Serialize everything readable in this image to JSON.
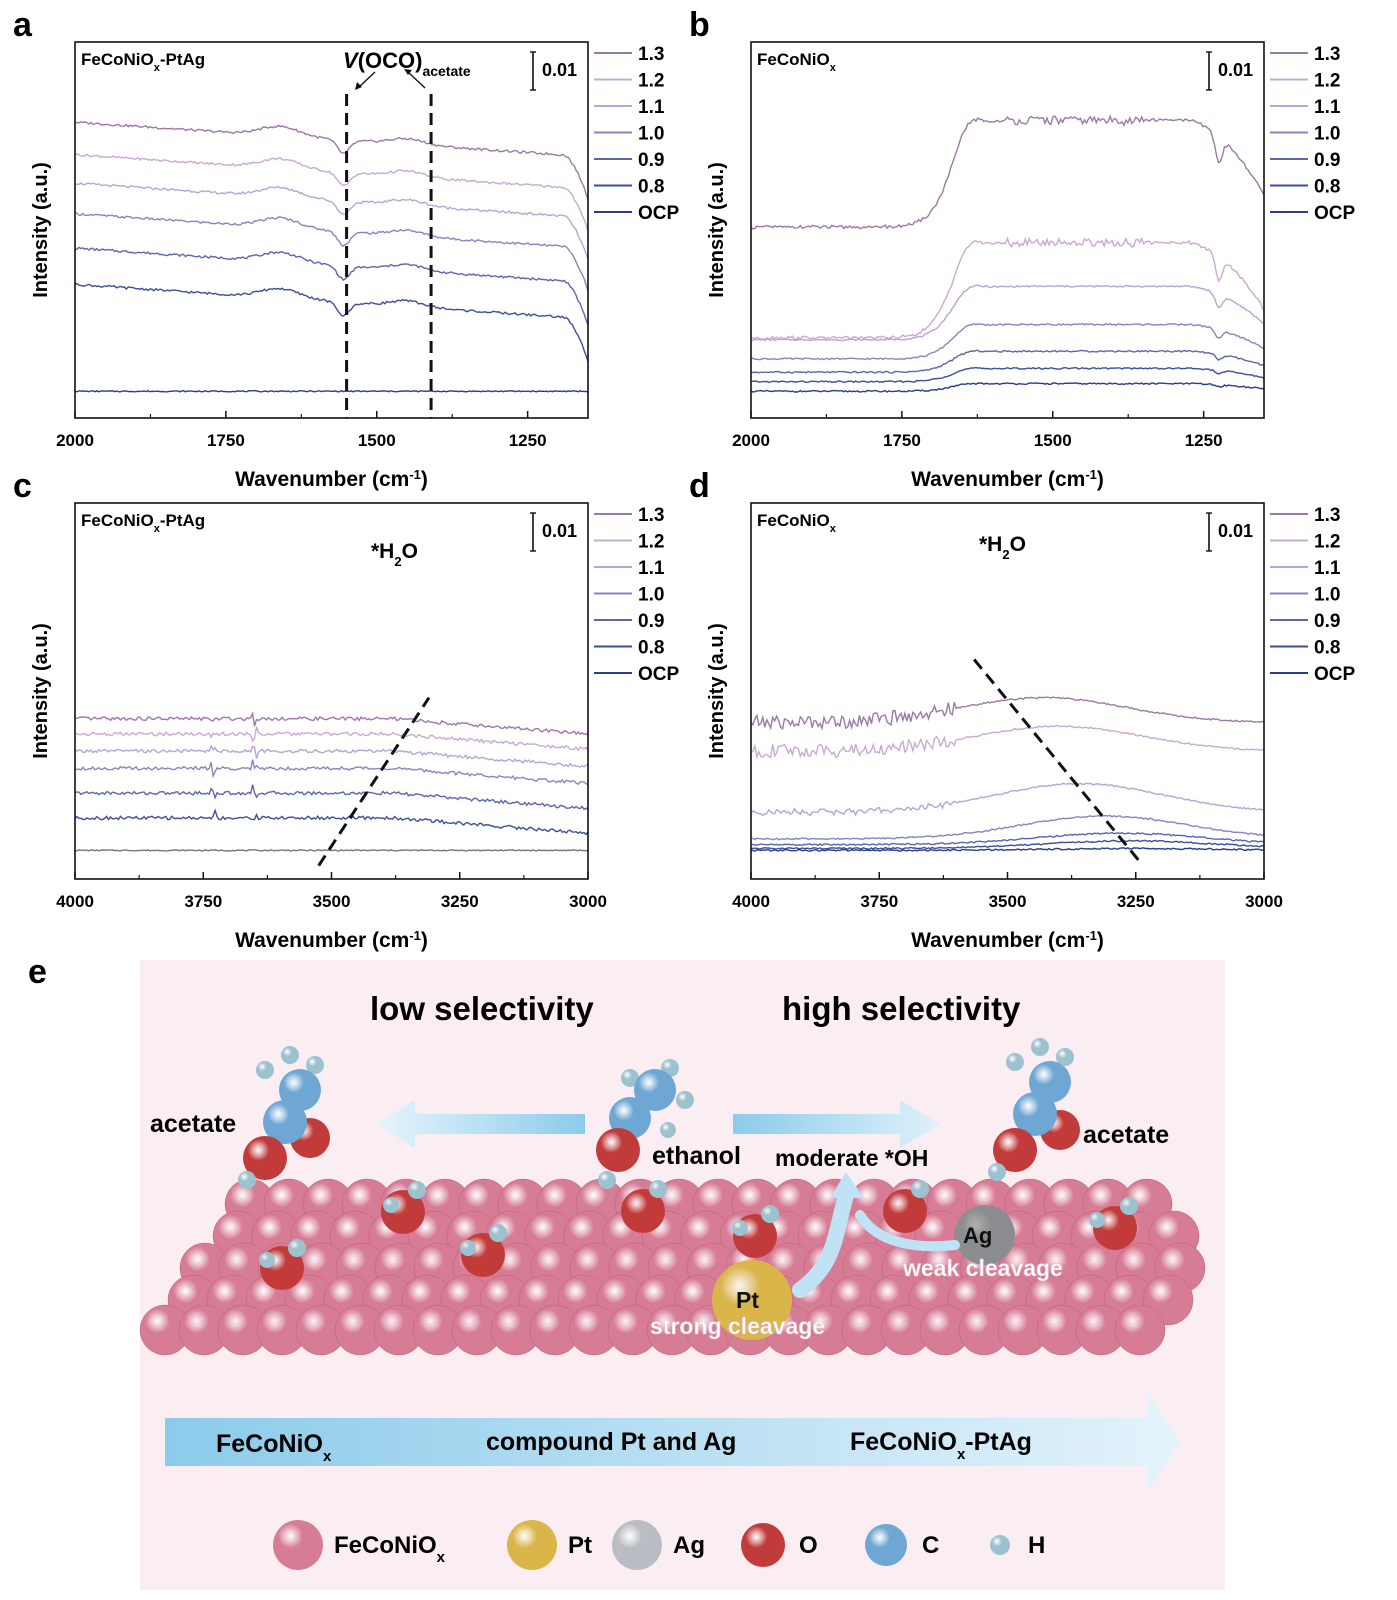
{
  "chart_data": [
    {
      "panel_letter": "a",
      "type": "line",
      "sample": "FeCoNiO",
      "sample_sub": "x",
      "sample_tail": "-PtAg",
      "xlabel": "Wavenumber (cm",
      "xlabel_sup": "-1",
      "xlabel_tail": ")",
      "ylabel": "Intensity (a.u.)",
      "xlim": [
        2000,
        1150
      ],
      "xticks": [
        2000,
        1750,
        1500,
        1250
      ],
      "scale_bar": "0.01",
      "legend": [
        "1.3",
        "1.2",
        "1.1",
        "1.0",
        "0.9",
        "0.8",
        "OCP"
      ],
      "annotation": {
        "italic": "V",
        "main": "(OCO)",
        "sub": "acetate"
      },
      "marker_lines_x": [
        1550,
        1410
      ],
      "series": [
        {
          "name": "1.3",
          "offset": 0.0125,
          "shape": "acetate"
        },
        {
          "name": "1.2",
          "offset": 0.0108,
          "shape": "acetate"
        },
        {
          "name": "1.1",
          "offset": 0.0093,
          "shape": "acetate"
        },
        {
          "name": "1.0",
          "offset": 0.0077,
          "shape": "acetate"
        },
        {
          "name": "0.9",
          "offset": 0.0059,
          "shape": "acetate"
        },
        {
          "name": "0.8",
          "offset": 0.004,
          "shape": "acetate"
        },
        {
          "name": "OCP",
          "offset": 0.0002,
          "shape": "flat"
        }
      ]
    },
    {
      "panel_letter": "b",
      "type": "line",
      "sample": "FeCoNiO",
      "sample_sub": "x",
      "sample_tail": "",
      "xlabel": "Wavenumber (cm",
      "xlabel_sup": "-1",
      "xlabel_tail": ")",
      "ylabel": "Intensity (a.u.)",
      "xlim": [
        2000,
        1150
      ],
      "xticks": [
        2000,
        1750,
        1500,
        1250
      ],
      "scale_bar": "0.01",
      "legend": [
        "1.3",
        "1.2",
        "1.1",
        "1.0",
        "0.9",
        "0.8",
        "OCP"
      ],
      "series": [
        {
          "name": "1.3",
          "offset": 0.0088,
          "amp": 0.0056,
          "shape": "broad"
        },
        {
          "name": "1.2",
          "offset": 0.003,
          "amp": 0.005,
          "shape": "broad"
        },
        {
          "name": "1.1",
          "offset": 0.0029,
          "amp": 0.0028,
          "shape": "broad"
        },
        {
          "name": "1.0",
          "offset": 0.0019,
          "amp": 0.0018,
          "shape": "broad"
        },
        {
          "name": "0.9",
          "offset": 0.0012,
          "amp": 0.0011,
          "shape": "broad"
        },
        {
          "name": "0.8",
          "offset": 0.0007,
          "amp": 0.0007,
          "shape": "broad"
        },
        {
          "name": "OCP",
          "offset": 0.0002,
          "amp": 0.0004,
          "shape": "broad"
        }
      ]
    },
    {
      "panel_letter": "c",
      "type": "line",
      "sample": "FeCoNiO",
      "sample_sub": "x",
      "sample_tail": "-PtAg",
      "xlabel": "Wavenumber (cm",
      "xlabel_sup": "-1",
      "xlabel_tail": ")",
      "ylabel": "Intensity (a.u.)",
      "xlim": [
        4000,
        3000
      ],
      "xticks": [
        4000,
        3750,
        3500,
        3250,
        3000
      ],
      "scale_bar": "0.01",
      "legend": [
        "1.3",
        "1.2",
        "1.1",
        "1.0",
        "0.9",
        "0.8",
        "OCP"
      ],
      "annotation": {
        "main": "*H",
        "sub": "2",
        "tail": "O"
      },
      "trend_line": {
        "x": [
          3525,
          3310
        ],
        "y": [
          -0.0005,
          0.0083
        ]
      },
      "series": [
        {
          "name": "1.3",
          "offset": 0.0072,
          "amp": 0.0008,
          "shape": "water_flat"
        },
        {
          "name": "1.2",
          "offset": 0.0064,
          "amp": 0.0008,
          "shape": "water_flat"
        },
        {
          "name": "1.1",
          "offset": 0.0055,
          "amp": 0.0008,
          "shape": "water_flat"
        },
        {
          "name": "1.0",
          "offset": 0.0046,
          "amp": 0.0008,
          "shape": "water_flat"
        },
        {
          "name": "0.9",
          "offset": 0.0033,
          "amp": 0.0008,
          "shape": "water_flat"
        },
        {
          "name": "0.8",
          "offset": 0.002,
          "amp": 0.0008,
          "shape": "water_flat"
        },
        {
          "name": "OCP",
          "offset": 0.0003,
          "amp": 0.0,
          "shape": "flat"
        }
      ]
    },
    {
      "panel_letter": "d",
      "type": "line",
      "sample": "FeCoNiO",
      "sample_sub": "x",
      "sample_tail": "",
      "xlabel": "Wavenumber (cm",
      "xlabel_sup": "-1",
      "xlabel_tail": ")",
      "ylabel": "Intensity (a.u.)",
      "xlim": [
        4000,
        3000
      ],
      "xticks": [
        4000,
        3750,
        3500,
        3250,
        3000
      ],
      "scale_bar": "0.01",
      "legend": [
        "1.3",
        "1.2",
        "1.1",
        "1.0",
        "0.9",
        "0.8",
        "OCP"
      ],
      "annotation": {
        "main": "*H",
        "sub": "2",
        "tail": "O"
      },
      "trend_line": {
        "x": [
          3565,
          3245
        ],
        "y": [
          0.0103,
          -0.0002
        ]
      },
      "series": [
        {
          "name": "1.3",
          "offset": 0.007,
          "peak_x": 3430,
          "peak_y": 0.0083,
          "shape": "water_peak"
        },
        {
          "name": "1.2",
          "offset": 0.0055,
          "peak_x": 3400,
          "peak_y": 0.0068,
          "shape": "water_peak"
        },
        {
          "name": "1.1",
          "offset": 0.0023,
          "peak_x": 3360,
          "peak_y": 0.0038,
          "shape": "water_peak"
        },
        {
          "name": "1.0",
          "offset": 0.0009,
          "peak_x": 3310,
          "peak_y": 0.0021,
          "shape": "water_peak"
        },
        {
          "name": "0.9",
          "offset": 0.0006,
          "peak_x": 3280,
          "peak_y": 0.0012,
          "shape": "water_peak"
        },
        {
          "name": "0.8",
          "offset": 0.0004,
          "peak_x": 3260,
          "peak_y": 0.0008,
          "shape": "water_peak"
        },
        {
          "name": "OCP",
          "offset": 0.0003,
          "peak_x": 3250,
          "peak_y": 0.0004,
          "shape": "water_peak"
        }
      ]
    }
  ],
  "colors": {
    "curves": [
      "#9b7aa6",
      "#c9aad3",
      "#b8a4d6",
      "#8a84c0",
      "#5d66ad",
      "#3f4e9a",
      "#2b3c8c"
    ],
    "ocp_c": "#6b7a8a",
    "panel_bg": "#fbeef2",
    "sphere_lattice": "#d77c95",
    "sphere_o": "#c23b3b",
    "sphere_c": "#6ea6d4",
    "sphere_h": "#9cc2cf",
    "sphere_pt": "#d9b54a",
    "sphere_ag": "#b9bcc2",
    "arrow": "#a9d6ef"
  },
  "panel_e": {
    "letter": "e",
    "low_title": "low selectivity",
    "high_title": "high selectivity",
    "acetate_left": "acetate",
    "ethanol": "ethanol",
    "acetate_right": "acetate",
    "moderate": "moderate *OH",
    "ag": "Ag",
    "weak": "weak cleavage",
    "pt": "Pt",
    "strong": "strong cleavage",
    "band_left": "FeCoNiO",
    "band_left_sub": "x",
    "band_mid": "compound Pt and Ag",
    "band_right": "FeCoNiO",
    "band_right_sub": "x",
    "band_right_tail": "-PtAg",
    "legend": [
      {
        "label": "FeCoNiO",
        "sub": "x",
        "icon": "lattice-sphere-icon"
      },
      {
        "label": "Pt",
        "sub": "",
        "icon": "pt-sphere-icon"
      },
      {
        "label": "Ag",
        "sub": "",
        "icon": "ag-sphere-icon"
      },
      {
        "label": "O",
        "sub": "",
        "icon": "o-sphere-icon"
      },
      {
        "label": "C",
        "sub": "",
        "icon": "c-sphere-icon"
      },
      {
        "label": "H",
        "sub": "",
        "icon": "h-sphere-icon"
      }
    ]
  }
}
